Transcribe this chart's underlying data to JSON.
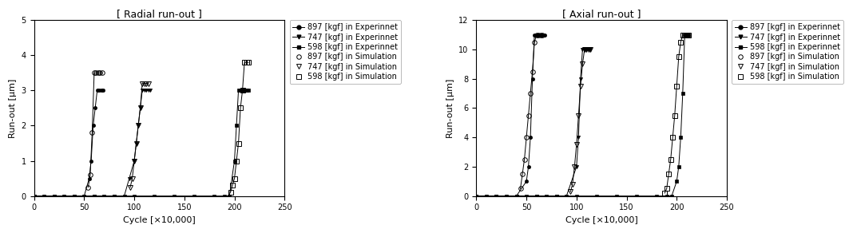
{
  "radial_title": "[ Radial run-out ]",
  "axial_title": "[ Axial run-out ]",
  "xlabel": "Cycle [×10,000]",
  "ylabel": "Run-out [μm]",
  "radial_ylim": [
    0,
    5
  ],
  "axial_ylim": [
    0,
    12
  ],
  "xlim": [
    0,
    250
  ],
  "xticks": [
    0,
    50,
    100,
    150,
    200,
    250
  ],
  "radial_exp": {
    "897": {
      "x": [
        0,
        10,
        20,
        30,
        40,
        50,
        55,
        57,
        59,
        61,
        63,
        65,
        67,
        69
      ],
      "y": [
        0,
        0,
        0,
        0,
        0,
        0,
        0.5,
        1.0,
        2.0,
        2.5,
        3.0,
        3.0,
        3.0,
        3.0
      ]
    },
    "747": {
      "x": [
        0,
        10,
        20,
        30,
        40,
        50,
        60,
        70,
        80,
        90,
        95,
        100,
        102,
        104,
        106,
        108,
        110,
        112,
        114,
        116
      ],
      "y": [
        0,
        0,
        0,
        0,
        0,
        0,
        0,
        0,
        0,
        0,
        0.5,
        1.0,
        1.5,
        2.0,
        2.5,
        3.0,
        3.0,
        3.0,
        3.0,
        3.0
      ]
    },
    "598": {
      "x": [
        0,
        20,
        40,
        60,
        80,
        100,
        120,
        140,
        160,
        180,
        190,
        195,
        200,
        202,
        204,
        206,
        208,
        210,
        212,
        214
      ],
      "y": [
        0,
        0,
        0,
        0,
        0,
        0,
        0,
        0,
        0,
        0,
        0,
        0,
        1.0,
        2.0,
        3.0,
        3.0,
        3.0,
        3.0,
        3.0,
        3.0
      ]
    }
  },
  "radial_sim": {
    "897": {
      "x": [
        54,
        56,
        58,
        60,
        62,
        64,
        66,
        68
      ],
      "y": [
        0.25,
        0.6,
        1.8,
        3.5,
        3.5,
        3.5,
        3.5,
        3.5
      ]
    },
    "747": {
      "x": [
        96,
        98,
        100,
        102,
        104,
        106,
        108,
        110,
        112,
        114
      ],
      "y": [
        0.25,
        0.5,
        1.0,
        1.5,
        2.0,
        2.5,
        3.2,
        3.2,
        3.2,
        3.2
      ]
    },
    "598": {
      "x": [
        196,
        198,
        200,
        202,
        204,
        206,
        208,
        210,
        212,
        214
      ],
      "y": [
        0.1,
        0.3,
        0.5,
        1.0,
        1.5,
        2.5,
        3.0,
        3.8,
        3.8,
        3.8
      ]
    }
  },
  "axial_exp": {
    "897": {
      "x": [
        0,
        10,
        20,
        30,
        40,
        50,
        52,
        54,
        56,
        58,
        60,
        62,
        64,
        66,
        68
      ],
      "y": [
        0,
        0,
        0,
        0,
        0,
        1.0,
        2.0,
        4.0,
        8.0,
        11.0,
        11.0,
        11.0,
        11.0,
        11.0,
        11.0
      ]
    },
    "747": {
      "x": [
        0,
        10,
        20,
        30,
        40,
        50,
        60,
        70,
        80,
        90,
        100,
        102,
        104,
        106,
        108,
        110,
        112,
        114
      ],
      "y": [
        0,
        0,
        0,
        0,
        0,
        0,
        0,
        0,
        0,
        0,
        2.0,
        4.0,
        8.0,
        10.0,
        10.0,
        10.0,
        10.0,
        10.0
      ]
    },
    "598": {
      "x": [
        0,
        20,
        40,
        60,
        80,
        100,
        120,
        140,
        160,
        180,
        190,
        195,
        200,
        202,
        204,
        206,
        208,
        210,
        212
      ],
      "y": [
        0,
        0,
        0,
        0,
        0,
        0,
        0,
        0,
        0,
        0,
        0,
        0,
        1.0,
        2.0,
        4.0,
        7.0,
        11.0,
        11.0,
        11.0
      ]
    }
  },
  "axial_sim": {
    "897": {
      "x": [
        44,
        46,
        48,
        50,
        52,
        54,
        56,
        58,
        60,
        62,
        64,
        66
      ],
      "y": [
        0.5,
        1.5,
        2.5,
        4.0,
        5.5,
        7.0,
        8.5,
        10.5,
        11.0,
        11.0,
        11.0,
        11.0
      ]
    },
    "747": {
      "x": [
        94,
        96,
        98,
        100,
        102,
        104,
        106,
        108,
        110,
        112,
        114
      ],
      "y": [
        0.3,
        0.8,
        2.0,
        3.5,
        5.5,
        7.5,
        9.0,
        10.0,
        10.0,
        10.0,
        10.0
      ]
    },
    "598": {
      "x": [
        188,
        190,
        192,
        194,
        196,
        198,
        200,
        202,
        204,
        206,
        208,
        210,
        212
      ],
      "y": [
        0.2,
        0.5,
        1.5,
        2.5,
        4.0,
        5.5,
        7.5,
        9.5,
        10.5,
        11.0,
        11.0,
        11.0,
        11.0
      ]
    }
  },
  "loads": [
    "897",
    "747",
    "598"
  ],
  "markers_exp": [
    "o",
    "v",
    "s"
  ],
  "markers_sim": [
    "o",
    "v",
    "s"
  ],
  "line_color": "#000000",
  "bg_color": "#ffffff",
  "fontsize_title": 9,
  "fontsize_axis": 8,
  "fontsize_tick": 7,
  "fontsize_legend": 7,
  "legend_labels_exp": [
    "897 [kgf] in Experinnet",
    "747 [kgf] in Experinnet",
    "598 [kgf] in Experinnet"
  ],
  "legend_labels_sim": [
    "897 [kgf] in Simulation",
    "747 [kgf] in Simulation",
    "598 [kgf] in Simulation"
  ]
}
